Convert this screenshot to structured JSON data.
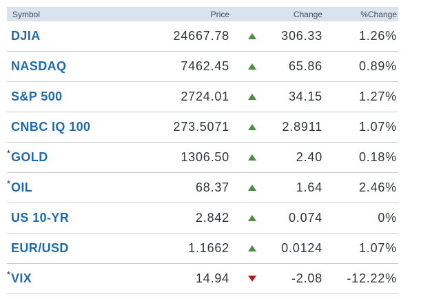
{
  "table": {
    "header": {
      "symbol": "Symbol",
      "price": "Price",
      "change": "Change",
      "pct_change": "%Change"
    },
    "colors": {
      "header_bg": "#d9e3ee",
      "header_text": "#3f4c58",
      "symbol_link": "#1f6aab",
      "value_text": "#2f3338",
      "divider": "#cccccc",
      "up_triangle": "#4a8f3f",
      "down_triangle": "#b71f25"
    },
    "asterisk_glyph": "*",
    "rows": [
      {
        "symbol": "DJIA",
        "has_asterisk": false,
        "price": "24667.78",
        "direction": "up",
        "change": "306.33",
        "pct_change": "1.26%"
      },
      {
        "symbol": "NASDAQ",
        "has_asterisk": false,
        "price": "7462.45",
        "direction": "up",
        "change": "65.86",
        "pct_change": "0.89%"
      },
      {
        "symbol": "S&P 500",
        "has_asterisk": false,
        "price": "2724.01",
        "direction": "up",
        "change": "34.15",
        "pct_change": "1.27%"
      },
      {
        "symbol": "CNBC IQ 100",
        "has_asterisk": false,
        "price": "273.5071",
        "direction": "up",
        "change": "2.8911",
        "pct_change": "1.07%"
      },
      {
        "symbol": "GOLD",
        "has_asterisk": true,
        "price": "1306.50",
        "direction": "up",
        "change": "2.40",
        "pct_change": "0.18%"
      },
      {
        "symbol": "OIL",
        "has_asterisk": true,
        "price": "68.37",
        "direction": "up",
        "change": "1.64",
        "pct_change": "2.46%"
      },
      {
        "symbol": "US 10-YR",
        "has_asterisk": false,
        "price": "2.842",
        "direction": "up",
        "change": "0.074",
        "pct_change": "0%"
      },
      {
        "symbol": "EUR/USD",
        "has_asterisk": false,
        "price": "1.1662",
        "direction": "up",
        "change": "0.0124",
        "pct_change": "1.07%"
      },
      {
        "symbol": "VIX",
        "has_asterisk": true,
        "price": "14.94",
        "direction": "down",
        "change": "-2.08",
        "pct_change": "-12.22%"
      }
    ]
  }
}
